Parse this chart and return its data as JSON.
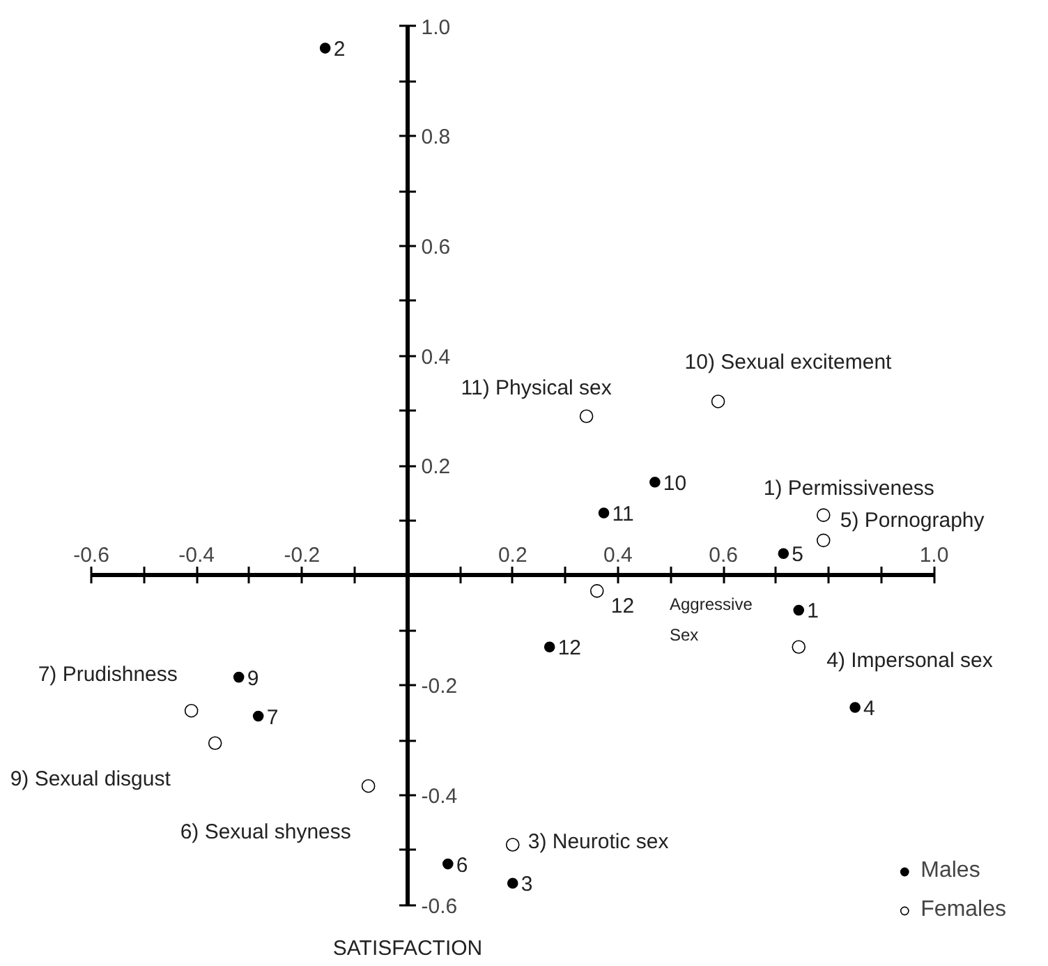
{
  "chart_data": {
    "type": "scatter",
    "xlim": [
      -0.6,
      1.0
    ],
    "ylim": [
      -0.6,
      1.0
    ],
    "xticks": [
      -0.6,
      {
        "value": -0.5,
        "label": null
      },
      -0.4,
      {
        "value": -0.3,
        "label": null
      },
      -0.2,
      {
        "value": -0.1,
        "label": null
      },
      {
        "value": 0.1,
        "label": null
      },
      0.2,
      {
        "value": 0.3,
        "label": null
      },
      0.4,
      {
        "value": 0.5,
        "label": null
      },
      0.6,
      {
        "value": 0.7,
        "label": null
      },
      {
        "value": 0.8,
        "label": null
      },
      {
        "value": 0.9,
        "label": null
      },
      {
        "value": 1.0,
        "label": "1.0"
      }
    ],
    "yticks": [
      -0.6,
      {
        "value": -0.5,
        "label": null
      },
      -0.4,
      {
        "value": -0.3,
        "label": null
      },
      -0.2,
      {
        "value": -0.1,
        "label": null
      },
      {
        "value": 0.1,
        "label": null
      },
      0.2,
      {
        "value": 0.3,
        "label": null
      },
      0.4,
      {
        "value": 0.5,
        "label": null
      },
      0.6,
      {
        "value": 0.7,
        "label": null
      },
      0.8,
      {
        "value": 0.9,
        "label": null
      },
      {
        "value": 1.0,
        "label": "1.0"
      }
    ],
    "series": [
      {
        "name": "Males",
        "color": "#000000",
        "marker": "circle",
        "x": [
          -0.156,
          0.47,
          0.373,
          0.714,
          0.743,
          0.27,
          0.85,
          -0.32,
          -0.283,
          0.077,
          0.2
        ],
        "values": [
          0.96,
          0.17,
          0.114,
          0.04,
          -0.063,
          -0.13,
          -0.24,
          -0.185,
          -0.256,
          -0.525,
          -0.56
        ]
      },
      {
        "name": "Females",
        "color": "#000000",
        "marker": "circle",
        "x": [
          0.34,
          0.59,
          0.79,
          0.79,
          0.36,
          0.743,
          -0.41,
          -0.365,
          -0.074,
          0.2
        ],
        "values": [
          0.29,
          0.317,
          0.11,
          0.064,
          -0.028,
          -0.13,
          -0.246,
          -0.305,
          -0.383,
          -0.49
        ]
      }
    ],
    "annotations": [
      {
        "text": "2",
        "x": -0.156,
        "y": 0.96
      },
      {
        "text": "10",
        "x": 0.47,
        "y": 0.17
      },
      {
        "text": "11",
        "x": 0.373,
        "y": 0.114
      },
      {
        "text": "5",
        "x": 0.714,
        "y": 0.04
      },
      {
        "text": "1",
        "x": 0.743,
        "y": -0.063
      },
      {
        "text": "12",
        "x": 0.27,
        "y": -0.13
      },
      {
        "text": "4",
        "x": 0.85,
        "y": -0.24
      },
      {
        "text": "9",
        "x": -0.32,
        "y": -0.185
      },
      {
        "text": "7",
        "x": -0.283,
        "y": -0.256
      },
      {
        "text": "6",
        "x": 0.077,
        "y": -0.525
      },
      {
        "text": "3",
        "x": 0.2,
        "y": -0.56
      },
      {
        "text": "11) Physical sex",
        "x": 0.34,
        "y": 0.29
      },
      {
        "text": "10) Sexual excitement",
        "x": 0.59,
        "y": 0.317
      },
      {
        "text": "1) Permissiveness",
        "x": 0.79,
        "y": 0.11
      },
      {
        "text": "5) Pornography",
        "x": 0.79,
        "y": 0.064
      },
      {
        "text": "12",
        "x": 0.36,
        "y": -0.028
      },
      "Aggressive\nSex",
      {
        "text": "4) Impersonal sex",
        "x": 0.743,
        "y": -0.13
      },
      {
        "text": "3) Neurotic sex",
        "x": 0.2,
        "y": -0.49
      },
      {
        "text": "7) Prudishness",
        "x": -0.41,
        "y": -0.246
      },
      {
        "text": "9) Sexual disgust",
        "x": -0.365,
        "y": -0.305
      },
      {
        "text": "6) Sexual shyness",
        "x": -0.074,
        "y": -0.383
      },
      "SATISFACTION"
    ],
    "legend": "bottom right"
  }
}
